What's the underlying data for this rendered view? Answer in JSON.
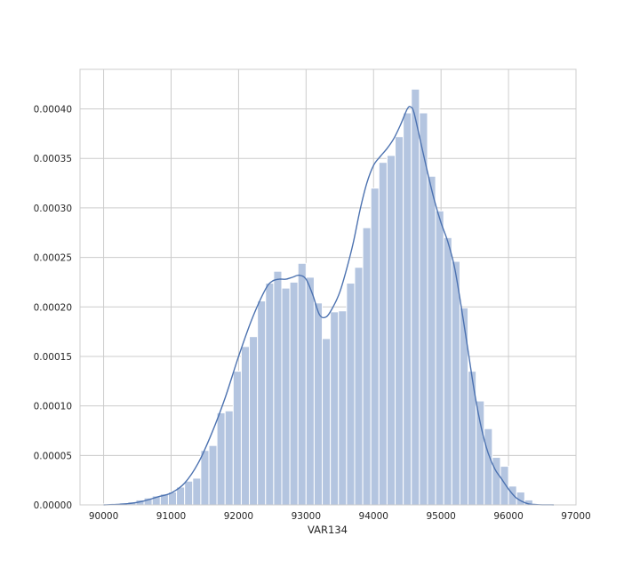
{
  "chart_data": {
    "type": "bar",
    "subtype": "histogram with density curve",
    "title": "",
    "xlabel": "VAR134",
    "ylabel": "",
    "xlim": [
      89650,
      97000
    ],
    "ylim": [
      0,
      0.00044
    ],
    "grid": true,
    "colors": {
      "bars": "#b4c5e0",
      "bar_edge": "#ffffff",
      "kde": "#4c72b0",
      "grid": "#cccccc",
      "frame": "#cccccc"
    },
    "x_ticks": [
      {
        "value": 90000,
        "label": "90000"
      },
      {
        "value": 91000,
        "label": "91000"
      },
      {
        "value": 92000,
        "label": "92000"
      },
      {
        "value": 93000,
        "label": "93000"
      },
      {
        "value": 94000,
        "label": "94000"
      },
      {
        "value": 95000,
        "label": "95000"
      },
      {
        "value": 96000,
        "label": "96000"
      },
      {
        "value": 97000,
        "label": "97000"
      }
    ],
    "y_ticks": [
      {
        "value": 0,
        "label": "0.00000"
      },
      {
        "value": 5e-05,
        "label": "0.00005"
      },
      {
        "value": 0.0001,
        "label": "0.00010"
      },
      {
        "value": 0.00015,
        "label": "0.00015"
      },
      {
        "value": 0.0002,
        "label": "0.00020"
      },
      {
        "value": 0.00025,
        "label": "0.00025"
      },
      {
        "value": 0.0003,
        "label": "0.00030"
      },
      {
        "value": 0.00035,
        "label": "0.00035"
      },
      {
        "value": 0.0004,
        "label": "0.00040"
      }
    ],
    "histogram": {
      "bin_start": 90000,
      "bin_width": 120,
      "values": [
        1e-06,
        1e-06,
        2e-06,
        3e-06,
        5e-06,
        7e-06,
        9e-06,
        1.1e-05,
        1.3e-05,
        1.8e-05,
        2.4e-05,
        2.7e-05,
        5.5e-05,
        6e-05,
        9.3e-05,
        9.5e-05,
        0.000135,
        0.00016,
        0.00017,
        0.000206,
        0.000224,
        0.000236,
        0.000219,
        0.000225,
        0.000244,
        0.00023,
        0.000204,
        0.000168,
        0.000195,
        0.000196,
        0.000224,
        0.00024,
        0.00028,
        0.00032,
        0.000346,
        0.000353,
        0.000372,
        0.000396,
        0.00042,
        0.000396,
        0.000332,
        0.000297,
        0.00027,
        0.000246,
        0.000199,
        0.000135,
        0.000105,
        7.7e-05,
        4.8e-05,
        3.9e-05,
        1.9e-05,
        1.3e-05,
        5e-06
      ]
    },
    "kde": {
      "x": [
        90000,
        90200,
        90400,
        90600,
        90800,
        91000,
        91200,
        91400,
        91600,
        91800,
        92000,
        92200,
        92400,
        92500,
        92600,
        92700,
        92800,
        92900,
        93000,
        93100,
        93200,
        93300,
        93400,
        93500,
        93600,
        93700,
        93800,
        93900,
        94000,
        94100,
        94200,
        94300,
        94400,
        94500,
        94550,
        94600,
        94700,
        94800,
        94900,
        95000,
        95100,
        95200,
        95300,
        95400,
        95500,
        95600,
        95700,
        95800,
        95900,
        96000,
        96100,
        96200,
        96300,
        96400,
        96500,
        96670
      ],
      "y": [
        0,
        5e-07,
        1.5e-06,
        4e-06,
        8e-06,
        1.2e-05,
        2.2e-05,
        4.2e-05,
        7.2e-05,
        0.000108,
        0.00015,
        0.000188,
        0.000218,
        0.000226,
        0.000228,
        0.000228,
        0.00023,
        0.000232,
        0.000228,
        0.000212,
        0.000192,
        0.00019,
        0.0002,
        0.000215,
        0.000238,
        0.000265,
        0.000298,
        0.000325,
        0.000343,
        0.000352,
        0.00036,
        0.00037,
        0.000384,
        0.0004,
        0.000402,
        0.000396,
        0.000366,
        0.000336,
        0.000308,
        0.000285,
        0.000266,
        0.00024,
        0.0002,
        0.000156,
        0.000112,
        7.7e-05,
        5.2e-05,
        3.6e-05,
        2.6e-05,
        1.6e-05,
        8e-06,
        3.5e-06,
        1e-06,
        4e-07,
        1e-07,
        0
      ]
    }
  }
}
